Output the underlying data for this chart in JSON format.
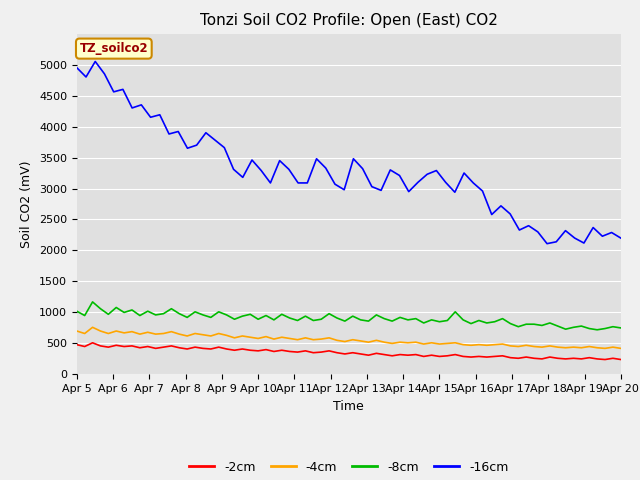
{
  "title": "Tonzi Soil CO2 Profile: Open (East) CO2",
  "xlabel": "Time",
  "ylabel": "Soil CO2 (mV)",
  "ylim": [
    0,
    5500
  ],
  "yticks": [
    0,
    500,
    1000,
    1500,
    2000,
    2500,
    3000,
    3500,
    4000,
    4500,
    5000
  ],
  "fig_bg": "#f0f0f0",
  "plot_bg": "#e0e0e0",
  "title_fontsize": 11,
  "label_fontsize": 9,
  "tick_fontsize": 8,
  "legend_label": "TZ_soilco2",
  "legend_box_facecolor": "#ffffcc",
  "legend_box_edgecolor": "#cc8800",
  "legend_text_color": "#990000",
  "x_labels": [
    "Apr 5",
    "Apr 6",
    "Apr 7",
    "Apr 8",
    "Apr 9",
    "Apr 10",
    "Apr 11",
    "Apr 12",
    "Apr 13",
    "Apr 14",
    "Apr 15",
    "Apr 16",
    "Apr 17",
    "Apr 18",
    "Apr 19",
    "Apr 20"
  ],
  "lines": {
    "-2cm": {
      "color": "#ff0000",
      "values": [
        480,
        450,
        510,
        460,
        440,
        470,
        450,
        460,
        430,
        450,
        420,
        440,
        460,
        430,
        410,
        440,
        420,
        410,
        440,
        410,
        390,
        410,
        390,
        380,
        400,
        370,
        390,
        370,
        360,
        380,
        350,
        360,
        380,
        350,
        330,
        350,
        330,
        310,
        340,
        320,
        300,
        320,
        310,
        320,
        290,
        310,
        290,
        300,
        320,
        290,
        280,
        290,
        280,
        290,
        300,
        270,
        260,
        280,
        260,
        250,
        280,
        260,
        250,
        260,
        250,
        270,
        250,
        240,
        260,
        240
      ]
    },
    "-4cm": {
      "color": "#ffa500",
      "values": [
        700,
        660,
        760,
        700,
        660,
        700,
        670,
        690,
        650,
        680,
        650,
        660,
        690,
        650,
        620,
        660,
        640,
        620,
        660,
        630,
        590,
        620,
        600,
        580,
        610,
        570,
        600,
        580,
        560,
        590,
        560,
        570,
        590,
        550,
        530,
        560,
        540,
        520,
        550,
        520,
        500,
        520,
        510,
        520,
        490,
        510,
        490,
        500,
        510,
        480,
        470,
        480,
        470,
        480,
        490,
        460,
        450,
        470,
        450,
        440,
        460,
        440,
        430,
        440,
        430,
        450,
        430,
        420,
        440,
        420
      ]
    },
    "-8cm": {
      "color": "#00bb00",
      "values": [
        1020,
        950,
        1170,
        1060,
        970,
        1080,
        1000,
        1040,
        950,
        1020,
        960,
        980,
        1060,
        980,
        920,
        1010,
        960,
        920,
        1010,
        960,
        890,
        940,
        970,
        890,
        950,
        880,
        970,
        910,
        870,
        940,
        870,
        890,
        980,
        910,
        860,
        940,
        880,
        860,
        960,
        900,
        860,
        920,
        880,
        900,
        830,
        880,
        850,
        870,
        1010,
        880,
        820,
        870,
        830,
        850,
        900,
        820,
        770,
        810,
        810,
        790,
        830,
        780,
        730,
        760,
        780,
        740,
        720,
        740,
        770,
        750
      ]
    },
    "-16cm": {
      "color": "#0000ff",
      "values": [
        4950,
        4800,
        5050,
        4850,
        4560,
        4600,
        4300,
        4350,
        4150,
        4190,
        3880,
        3920,
        3650,
        3700,
        3900,
        3780,
        3660,
        3310,
        3180,
        3460,
        3290,
        3090,
        3450,
        3310,
        3090,
        3090,
        3480,
        3330,
        3070,
        2980,
        3480,
        3320,
        3030,
        2970,
        3300,
        3210,
        2950,
        3100,
        3230,
        3290,
        3100,
        2940,
        3250,
        3090,
        2960,
        2580,
        2720,
        2590,
        2330,
        2400,
        2300,
        2110,
        2140,
        2320,
        2200,
        2120,
        2370,
        2230,
        2290,
        2200
      ]
    }
  }
}
